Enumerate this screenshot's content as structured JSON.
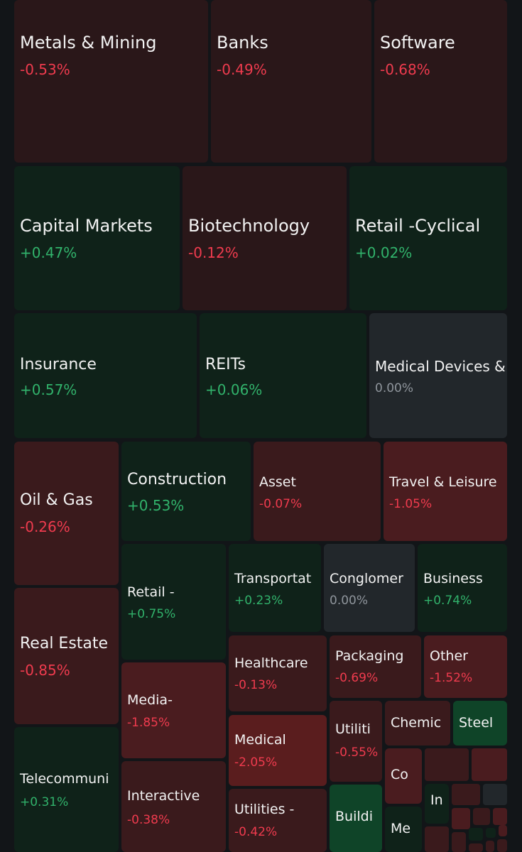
{
  "colors": {
    "background": "#121518",
    "deep_red": "#2a1719",
    "red": "#3a1a1c",
    "strong_red": "#4a1c1f",
    "bright_red": "#5a1d1e",
    "deep_green": "#0f2219",
    "green": "#0f2a1e",
    "bright_green": "#0f4428",
    "neutral": "#22272b",
    "up_text": "#31b26b",
    "down_text": "#ef3b4e",
    "flat_text": "#8f959c"
  },
  "sectors": [
    {
      "id": "metals-mining",
      "name": "Metals & Mining",
      "change": "-0.53%"
    },
    {
      "id": "banks",
      "name": "Banks",
      "change": "-0.49%"
    },
    {
      "id": "software",
      "name": "Software",
      "change": "-0.68%"
    },
    {
      "id": "capital-markets",
      "name": "Capital Markets",
      "change": "+0.47%"
    },
    {
      "id": "biotechnology",
      "name": "Biotechnology",
      "change": "-0.12%"
    },
    {
      "id": "retail-cyclical",
      "name": "Retail -Cyclical",
      "change": "+0.02%"
    },
    {
      "id": "insurance",
      "name": "Insurance",
      "change": "+0.57%"
    },
    {
      "id": "reits",
      "name": "REITs",
      "change": "+0.06%"
    },
    {
      "id": "medical-devices",
      "name": "Medical Devices &",
      "change": "0.00%"
    },
    {
      "id": "oil-gas",
      "name": "Oil & Gas",
      "change": "-0.26%"
    },
    {
      "id": "construction",
      "name": "Construction",
      "change": "+0.53%"
    },
    {
      "id": "asset",
      "name": "Asset",
      "change": "-0.07%"
    },
    {
      "id": "travel-leisure",
      "name": "Travel & Leisure",
      "change": "-1.05%"
    },
    {
      "id": "retail-2",
      "name": "Retail -",
      "change": "+0.75%"
    },
    {
      "id": "transportat",
      "name": "Transportat",
      "change": "+0.23%"
    },
    {
      "id": "conglomer",
      "name": "Conglomer",
      "change": "0.00%"
    },
    {
      "id": "business",
      "name": "Business",
      "change": "+0.74%"
    },
    {
      "id": "real-estate",
      "name": "Real Estate",
      "change": "-0.85%"
    },
    {
      "id": "healthcare",
      "name": "Healthcare",
      "change": "-0.13%"
    },
    {
      "id": "packaging",
      "name": "Packaging",
      "change": "-0.69%"
    },
    {
      "id": "other",
      "name": "Other",
      "change": "-1.52%"
    },
    {
      "id": "media",
      "name": "Media-",
      "change": "-1.85%"
    },
    {
      "id": "medical",
      "name": "Medical",
      "change": "-2.05%"
    },
    {
      "id": "utiliti",
      "name": "Utiliti",
      "change": "-0.55%"
    },
    {
      "id": "chemic",
      "name": "Chemic",
      "change": ""
    },
    {
      "id": "steel",
      "name": "Steel",
      "change": ""
    },
    {
      "id": "telecommuni",
      "name": "Telecommuni",
      "change": "+0.31%"
    },
    {
      "id": "interactive",
      "name": "Interactive",
      "change": "-0.38%"
    },
    {
      "id": "utilities-2",
      "name": "Utilities -",
      "change": "-0.42%"
    },
    {
      "id": "co",
      "name": "Co",
      "change": ""
    },
    {
      "id": "buildi",
      "name": "Buildi",
      "change": ""
    },
    {
      "id": "in",
      "name": "In",
      "change": ""
    },
    {
      "id": "me",
      "name": "Me",
      "change": ""
    }
  ]
}
